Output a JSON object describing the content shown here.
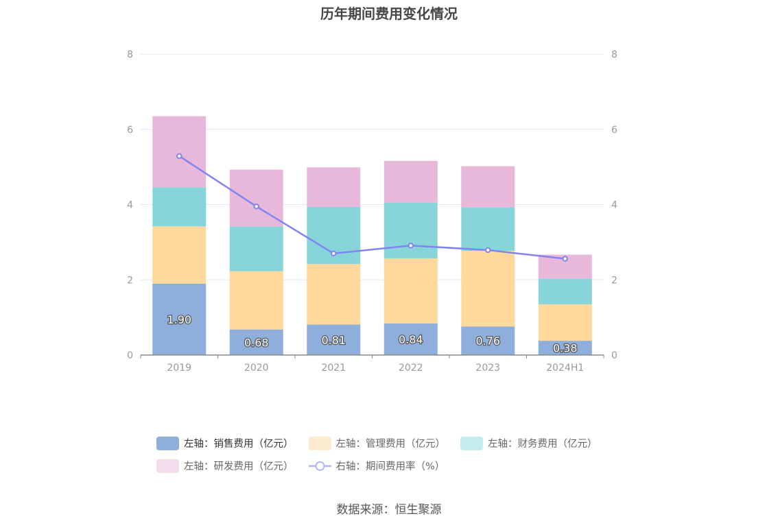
{
  "title": "历年期间费用变化情况",
  "source": "数据来源：恒生聚源",
  "colors": {
    "sales": "#8eaedb",
    "admin": "#fed99b",
    "finance": "#87d5da",
    "rnd": "#e7b8da",
    "rate_line": "#7f84f0",
    "axis_text": "#999999",
    "grid": "#e3e6f5"
  },
  "legend": [
    {
      "label": "左轴：销售费用（亿元）",
      "icon": "bar-swatch",
      "color": "#8eaedb",
      "active": true
    },
    {
      "label": "左轴：管理费用（亿元）",
      "icon": "bar-swatch",
      "color": "#fdebcf",
      "active": false
    },
    {
      "label": "左轴：财务费用（亿元）",
      "icon": "bar-swatch",
      "color": "#c4ebee",
      "active": false
    },
    {
      "label": "左轴：研发费用（亿元）",
      "icon": "bar-swatch",
      "color": "#f3dcec",
      "active": false
    },
    {
      "label": "右轴：期间费用率（%）",
      "icon": "line-marker",
      "color": "#b3b6f5",
      "active": false
    }
  ],
  "chart_data": {
    "type": "bar",
    "stacked": true,
    "title": "历年期间费用变化情况",
    "categories": [
      "2019",
      "2020",
      "2021",
      "2022",
      "2023",
      "2024H1"
    ],
    "y_left": {
      "ticks": [
        "0",
        "2",
        "4",
        "6",
        "8"
      ],
      "ylim": [
        0,
        8
      ]
    },
    "y_right": {
      "ticks": [
        "0",
        "2",
        "4",
        "6",
        "8"
      ],
      "ylim": [
        0,
        8
      ]
    },
    "grid": true,
    "legend_position": "bottom",
    "series": [
      {
        "name": "左轴：销售费用（亿元）",
        "axis": "left",
        "type": "bar",
        "color": "#8eaedb",
        "values": [
          1.9,
          0.68,
          0.81,
          0.84,
          0.76,
          0.38
        ],
        "labels": [
          "1.90",
          "0.68",
          "0.81",
          "0.84",
          "0.76",
          "0.38"
        ]
      },
      {
        "name": "左轴：管理费用（亿元）",
        "axis": "left",
        "type": "bar",
        "color": "#fed99b",
        "values": [
          1.52,
          1.55,
          1.61,
          1.73,
          2.01,
          0.97
        ]
      },
      {
        "name": "左轴：财务费用（亿元）",
        "axis": "left",
        "type": "bar",
        "color": "#87d5da",
        "values": [
          1.04,
          1.19,
          1.52,
          1.48,
          1.16,
          0.68
        ]
      },
      {
        "name": "左轴：研发费用（亿元）",
        "axis": "left",
        "type": "bar",
        "color": "#e7b8da",
        "values": [
          1.89,
          1.51,
          1.05,
          1.11,
          1.09,
          0.64
        ]
      },
      {
        "name": "右轴：期间费用率（%）",
        "axis": "right",
        "type": "line",
        "color": "#7f84f0",
        "values": [
          5.29,
          3.95,
          2.7,
          2.91,
          2.79,
          2.56
        ]
      }
    ]
  }
}
